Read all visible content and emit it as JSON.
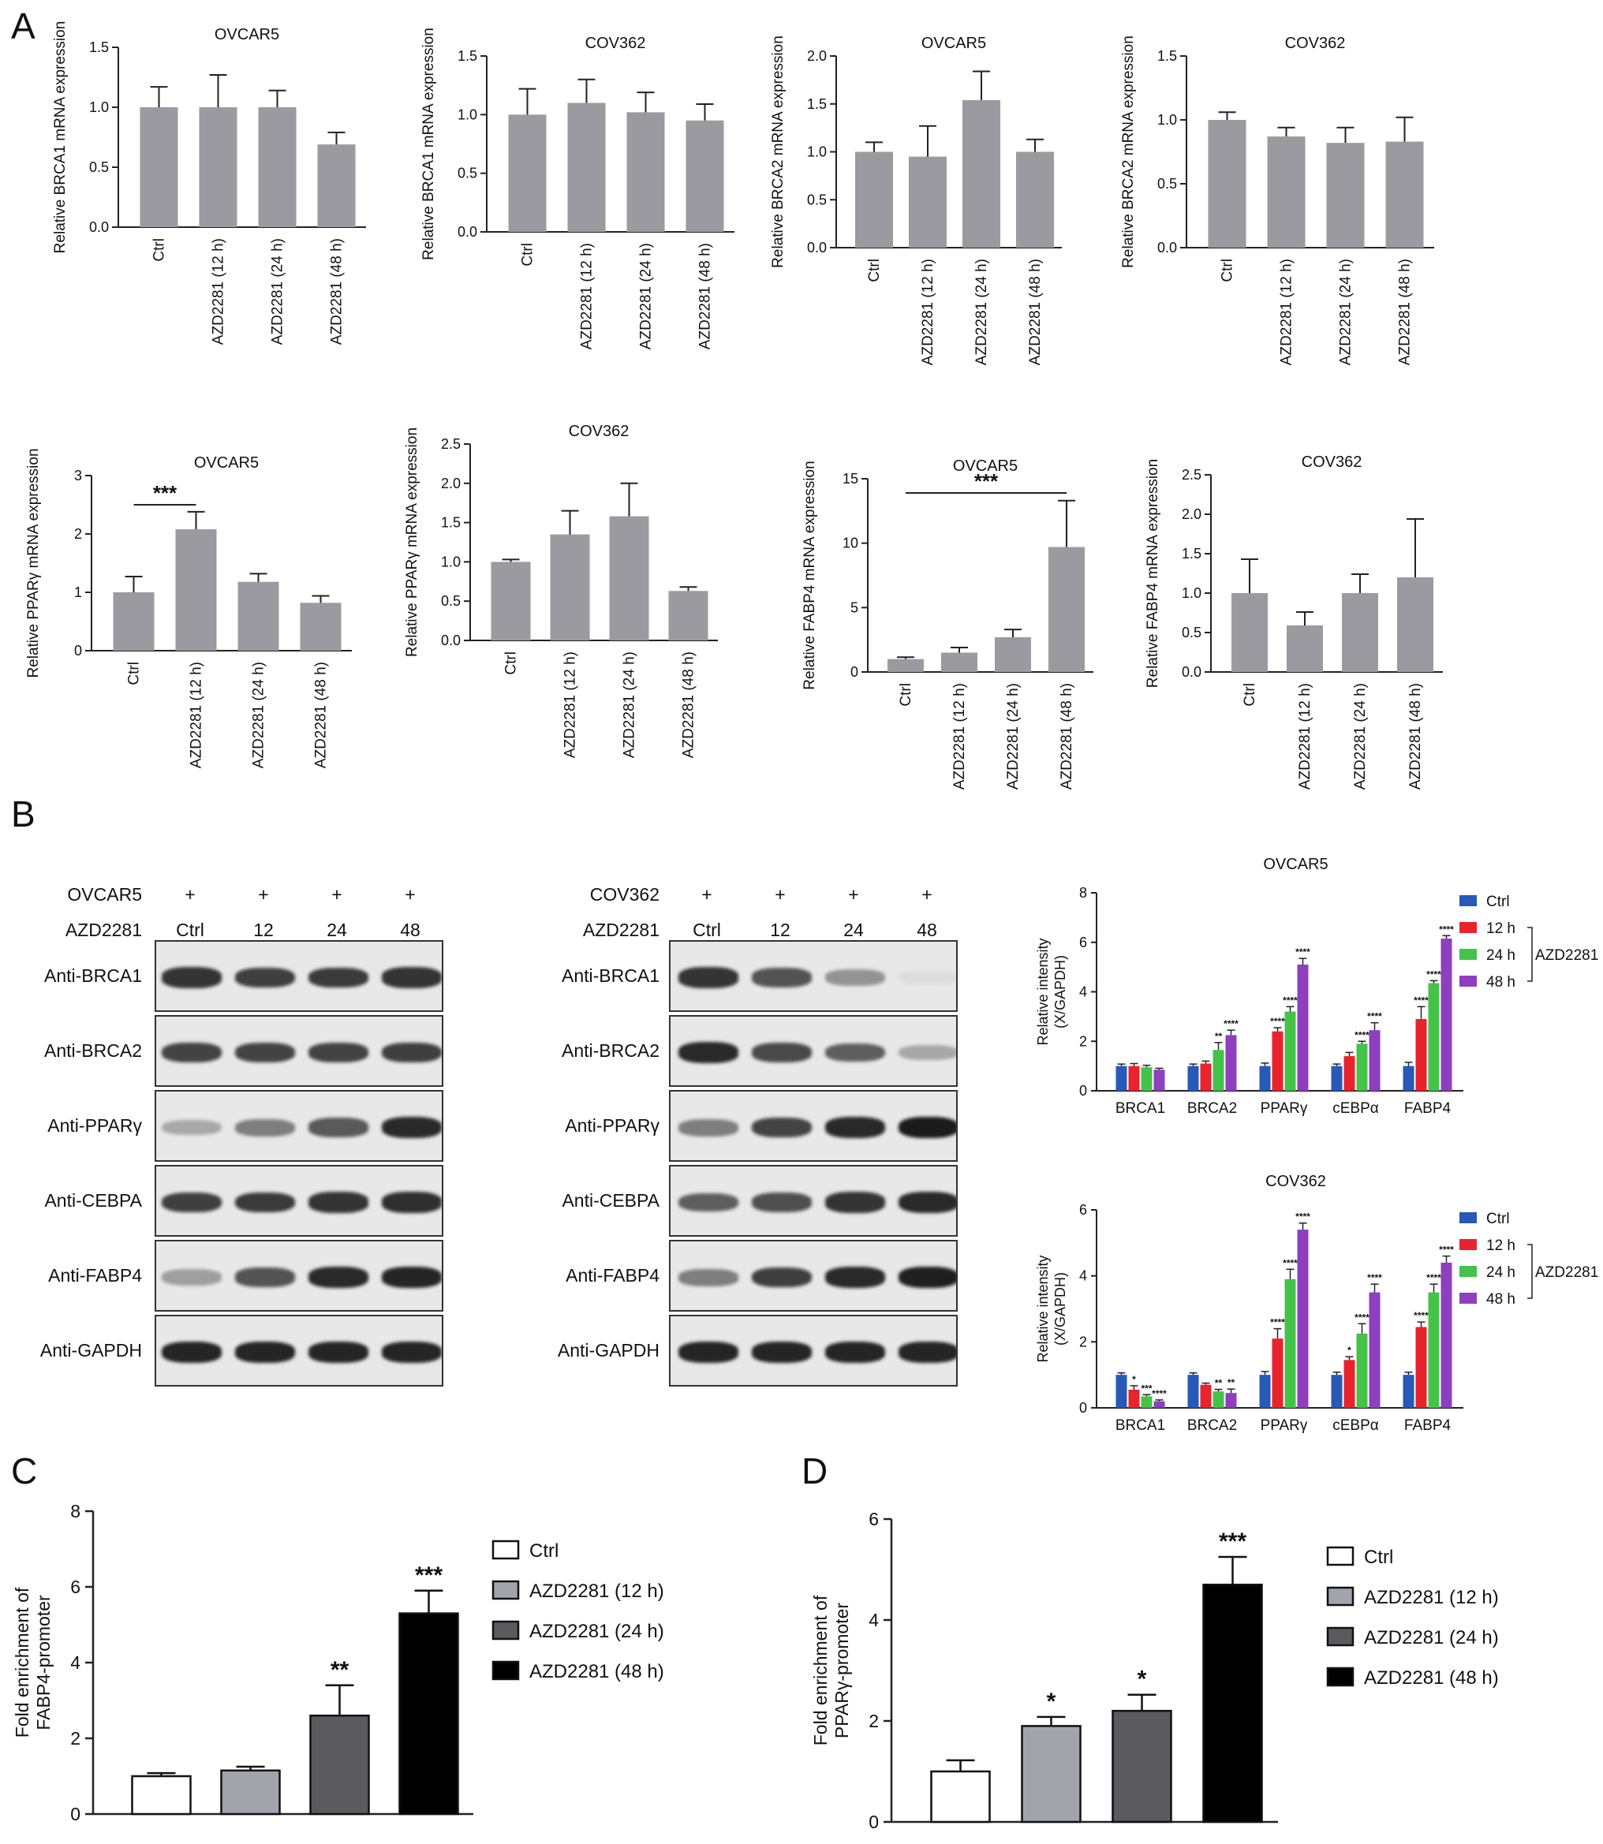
{
  "panel_letters": [
    "A",
    "B",
    "C",
    "D"
  ],
  "colors": {
    "bar_gray": "#9a9aa0",
    "ctrl": "#2659b8",
    "h12": "#e8232e",
    "h24": "#45c24a",
    "h48": "#8e3fbf"
  },
  "chart_data": [
    {
      "id": "a1",
      "type": "bar",
      "title": "OVCAR5",
      "ylabel": "Relative BRCA1 mRNA expression",
      "categories": [
        "Ctrl",
        "AZD2281 (12 h)",
        "AZD2281 (24 h)",
        "AZD2281 (48 h)"
      ],
      "values": [
        1.0,
        1.0,
        1.0,
        0.69
      ],
      "errors": [
        0.17,
        0.27,
        0.14,
        0.1
      ],
      "ylim": [
        0,
        1.5
      ],
      "yticks": [
        "0.0",
        "0.5",
        "1.0",
        "1.5"
      ]
    },
    {
      "id": "a2",
      "type": "bar",
      "title": "COV362",
      "ylabel": "Relative BRCA1 mRNA expression",
      "categories": [
        "Ctrl",
        "AZD2281 (12 h)",
        "AZD2281 (24 h)",
        "AZD2281 (48 h)"
      ],
      "values": [
        1.0,
        1.1,
        1.02,
        0.95
      ],
      "errors": [
        0.22,
        0.2,
        0.17,
        0.14
      ],
      "ylim": [
        0,
        1.5
      ],
      "yticks": [
        "0.0",
        "0.5",
        "1.0",
        "1.5"
      ]
    },
    {
      "id": "a3",
      "type": "bar",
      "title": "OVCAR5",
      "ylabel": "Relative BRCA2 mRNA expression",
      "categories": [
        "Ctrl",
        "AZD2281 (12 h)",
        "AZD2281 (24 h)",
        "AZD2281 (48 h)"
      ],
      "values": [
        1.0,
        0.95,
        1.54,
        1.0
      ],
      "errors": [
        0.1,
        0.32,
        0.3,
        0.13
      ],
      "ylim": [
        0,
        2.0
      ],
      "yticks": [
        "0.0",
        "0.5",
        "1.0",
        "1.5",
        "2.0"
      ]
    },
    {
      "id": "a4",
      "type": "bar",
      "title": "COV362",
      "ylabel": "Relative BRCA2 mRNA expression",
      "categories": [
        "Ctrl",
        "AZD2281 (12 h)",
        "AZD2281 (24 h)",
        "AZD2281 (48 h)"
      ],
      "values": [
        1.0,
        0.87,
        0.82,
        0.83
      ],
      "errors": [
        0.06,
        0.07,
        0.12,
        0.19
      ],
      "ylim": [
        0,
        1.5
      ],
      "yticks": [
        "0.0",
        "0.5",
        "1.0",
        "1.5"
      ]
    },
    {
      "id": "a5",
      "type": "bar",
      "title": "OVCAR5",
      "ylabel": "Relative PPARγ mRNA expression",
      "categories": [
        "Ctrl",
        "AZD2281 (12 h)",
        "AZD2281 (24 h)",
        "AZD2281 (48 h)"
      ],
      "values": [
        1.0,
        2.08,
        1.18,
        0.82
      ],
      "errors": [
        0.27,
        0.3,
        0.14,
        0.12
      ],
      "ylim": [
        0,
        3
      ],
      "yticks": [
        "0",
        "1",
        "2",
        "3"
      ],
      "annotations": [
        {
          "text": "***",
          "from": 0,
          "to": 1,
          "y": 2.5
        }
      ]
    },
    {
      "id": "a6",
      "type": "bar",
      "title": "COV362",
      "ylabel": "Relative PPARγ mRNA expression",
      "categories": [
        "Ctrl",
        "AZD2281 (12 h)",
        "AZD2281 (24 h)",
        "AZD2281 (48 h)"
      ],
      "values": [
        1.0,
        1.35,
        1.58,
        0.63
      ],
      "errors": [
        0.03,
        0.3,
        0.42,
        0.05
      ],
      "ylim": [
        0,
        2.5
      ],
      "yticks": [
        "0.0",
        "0.5",
        "1.0",
        "1.5",
        "2.0",
        "2.5"
      ]
    },
    {
      "id": "a7",
      "type": "bar",
      "title": "OVCAR5",
      "ylabel": "Relative FABP4 mRNA expression",
      "categories": [
        "Ctrl",
        "AZD2281 (12 h)",
        "AZD2281 (24 h)",
        "AZD2281 (48 h)"
      ],
      "values": [
        1.0,
        1.5,
        2.7,
        9.7
      ],
      "errors": [
        0.15,
        0.4,
        0.6,
        3.6
      ],
      "ylim": [
        0,
        15
      ],
      "yticks": [
        "0",
        "5",
        "10",
        "15"
      ],
      "annotations": [
        {
          "text": "***",
          "from": 0,
          "to": 3,
          "y": 13.9
        }
      ]
    },
    {
      "id": "a8",
      "type": "bar",
      "title": "COV362",
      "ylabel": "Relative FABP4 mRNA expression",
      "categories": [
        "Ctrl",
        "AZD2281 (12 h)",
        "AZD2281 (24 h)",
        "AZD2281 (48 h)"
      ],
      "values": [
        1.0,
        0.59,
        1.0,
        1.2
      ],
      "errors": [
        0.43,
        0.17,
        0.24,
        0.74
      ],
      "ylim": [
        0,
        2.5
      ],
      "yticks": [
        "0.0",
        "0.5",
        "1.0",
        "1.5",
        "2.0",
        "2.5"
      ]
    },
    {
      "id": "b1",
      "type": "bar",
      "title": "OVCAR5",
      "ylabel": "Relative intensity (X/GAPDH)",
      "categories": [
        "BRCA1",
        "BRCA2",
        "PPARγ",
        "cEBPα",
        "FABP4"
      ],
      "series": [
        {
          "name": "Ctrl",
          "values": [
            1.0,
            1.0,
            1.0,
            1.0,
            1.0
          ],
          "errors": [
            0.08,
            0.08,
            0.12,
            0.08,
            0.15
          ],
          "sig": [
            "",
            "",
            "",
            "",
            ""
          ]
        },
        {
          "name": "12 h",
          "values": [
            1.0,
            1.1,
            2.4,
            1.4,
            2.9
          ],
          "errors": [
            0.1,
            0.1,
            0.15,
            0.15,
            0.5
          ],
          "sig": [
            "",
            "",
            "****",
            "",
            "****"
          ]
        },
        {
          "name": "24 h",
          "values": [
            0.95,
            1.65,
            3.2,
            1.9,
            4.35
          ],
          "errors": [
            0.08,
            0.3,
            0.2,
            0.1,
            0.1
          ],
          "sig": [
            "",
            "**",
            "****",
            "****",
            "****"
          ]
        },
        {
          "name": "48 h",
          "values": [
            0.85,
            2.25,
            5.1,
            2.45,
            6.15
          ],
          "errors": [
            0.06,
            0.2,
            0.25,
            0.3,
            0.12
          ],
          "sig": [
            "",
            "****",
            "****",
            "****",
            "****"
          ]
        }
      ],
      "ylim": [
        0,
        8
      ],
      "yticks": [
        "0",
        "2",
        "4",
        "6",
        "8"
      ],
      "ylabel_lines": [
        "Relative intensity",
        "(X/GAPDH)"
      ],
      "legend": [
        "Ctrl",
        "12 h",
        "24 h",
        "48 h"
      ],
      "legend_group": "AZD2281"
    },
    {
      "id": "b2",
      "type": "bar",
      "title": "COV362",
      "ylabel": "Relative intensity (X/GAPDH)",
      "categories": [
        "BRCA1",
        "BRCA2",
        "PPARγ",
        "cEBPα",
        "FABP4"
      ],
      "series": [
        {
          "name": "Ctrl",
          "values": [
            1.0,
            1.0,
            1.0,
            1.0,
            1.0
          ],
          "errors": [
            0.06,
            0.06,
            0.1,
            0.08,
            0.08
          ],
          "sig": [
            "",
            "",
            "",
            "",
            ""
          ]
        },
        {
          "name": "12 h",
          "values": [
            0.55,
            0.7,
            2.1,
            1.45,
            2.45
          ],
          "errors": [
            0.12,
            0.05,
            0.3,
            0.1,
            0.15
          ],
          "sig": [
            "*",
            "",
            "****",
            "*",
            "****"
          ]
        },
        {
          "name": "24 h",
          "values": [
            0.35,
            0.5,
            3.9,
            2.25,
            3.5
          ],
          "errors": [
            0.05,
            0.06,
            0.3,
            0.3,
            0.25
          ],
          "sig": [
            "***",
            "**",
            "****",
            "****",
            "****"
          ]
        },
        {
          "name": "48 h",
          "values": [
            0.2,
            0.45,
            5.4,
            3.5,
            4.4
          ],
          "errors": [
            0.04,
            0.12,
            0.2,
            0.25,
            0.2
          ],
          "sig": [
            "****",
            "**",
            "****",
            "****",
            "****"
          ]
        }
      ],
      "ylim": [
        0,
        6
      ],
      "yticks": [
        "0",
        "2",
        "4",
        "6"
      ],
      "ylabel_lines": [
        "Relative intensity",
        "(X/GAPDH)"
      ],
      "legend": [
        "Ctrl",
        "12 h",
        "24 h",
        "48 h"
      ],
      "legend_group": "AZD2281"
    },
    {
      "id": "c",
      "type": "bar",
      "title": "",
      "ylabel": "Fold enrichment of FABP4-promoter",
      "ylabel_lines": [
        "Fold enrichment of",
        "FABP4-promoter"
      ],
      "categories": [
        "Ctrl",
        "AZD2281 (12 h)",
        "AZD2281 (24 h)",
        "AZD2281 (48 h)"
      ],
      "values": [
        1.0,
        1.15,
        2.6,
        5.3
      ],
      "errors": [
        0.08,
        0.1,
        0.8,
        0.6
      ],
      "sig": [
        "",
        "",
        "**",
        "***"
      ],
      "ylim": [
        0,
        8
      ],
      "yticks": [
        "0",
        "2",
        "4",
        "6",
        "8"
      ],
      "legend": [
        "Ctrl",
        "AZD2281 (12 h)",
        "AZD2281 (24 h)",
        "AZD2281 (48 h)"
      ]
    },
    {
      "id": "d",
      "type": "bar",
      "title": "",
      "ylabel": "Fold enrichment of PPARγ-promoter",
      "ylabel_lines": [
        "Fold enrichment of",
        "PPARγ-promoter"
      ],
      "categories": [
        "Ctrl",
        "AZD2281 (12 h)",
        "AZD2281 (24 h)",
        "AZD2281 (48 h)"
      ],
      "values": [
        1.0,
        1.9,
        2.2,
        4.7
      ],
      "errors": [
        0.22,
        0.18,
        0.32,
        0.55
      ],
      "sig": [
        "",
        "*",
        "*",
        "***"
      ],
      "ylim": [
        0,
        6
      ],
      "yticks": [
        "0",
        "2",
        "4",
        "6"
      ],
      "legend": [
        "Ctrl",
        "AZD2281 (12 h)",
        "AZD2281 (24 h)",
        "AZD2281 (48 h)"
      ]
    }
  ],
  "western_blots": [
    {
      "id": "wb1",
      "cell_line": "OVCAR5",
      "treatment_label": "AZD2281",
      "plus": [
        "+",
        "+",
        "+",
        "+"
      ],
      "lanes": [
        "Ctrl",
        "12",
        "24",
        "48"
      ],
      "rows": [
        {
          "label": "Anti-BRCA1",
          "intensity": [
            0.85,
            0.8,
            0.82,
            0.85
          ]
        },
        {
          "label": "Anti-BRCA2",
          "intensity": [
            0.78,
            0.78,
            0.78,
            0.8
          ]
        },
        {
          "label": "Anti-PPARγ",
          "intensity": [
            0.3,
            0.5,
            0.68,
            0.9
          ]
        },
        {
          "label": "Anti-CEBPA",
          "intensity": [
            0.8,
            0.82,
            0.85,
            0.88
          ]
        },
        {
          "label": "Anti-FABP4",
          "intensity": [
            0.35,
            0.7,
            0.9,
            0.92
          ]
        },
        {
          "label": "Anti-GAPDH",
          "intensity": [
            0.92,
            0.92,
            0.92,
            0.92
          ]
        }
      ]
    },
    {
      "id": "wb2",
      "cell_line": "COV362",
      "treatment_label": "AZD2281",
      "plus": [
        "+",
        "+",
        "+",
        "+"
      ],
      "lanes": [
        "Ctrl",
        "12",
        "24",
        "48"
      ],
      "rows": [
        {
          "label": "Anti-BRCA1",
          "intensity": [
            0.85,
            0.7,
            0.4,
            0.05
          ]
        },
        {
          "label": "Anti-BRCA2",
          "intensity": [
            0.9,
            0.75,
            0.65,
            0.3
          ]
        },
        {
          "label": "Anti-PPARγ",
          "intensity": [
            0.5,
            0.78,
            0.9,
            0.97
          ]
        },
        {
          "label": "Anti-CEBPA",
          "intensity": [
            0.65,
            0.72,
            0.85,
            0.9
          ]
        },
        {
          "label": "Anti-FABP4",
          "intensity": [
            0.5,
            0.8,
            0.9,
            0.95
          ]
        },
        {
          "label": "Anti-GAPDH",
          "intensity": [
            0.92,
            0.92,
            0.92,
            0.92
          ]
        }
      ]
    }
  ]
}
